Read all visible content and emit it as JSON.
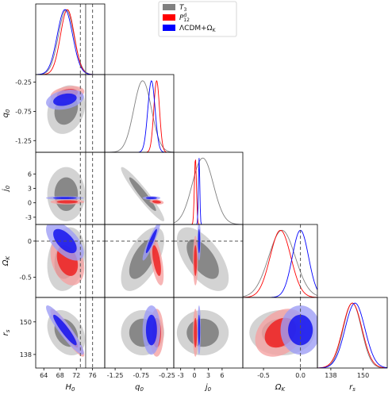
{
  "chart_data": {
    "type": "corner",
    "parameters": [
      {
        "key": "H0",
        "label": "H",
        "sub": "0",
        "ticks": [
          64,
          68,
          72,
          76
        ],
        "lim": [
          62,
          79
        ]
      },
      {
        "key": "q0",
        "label": "q",
        "sub": "0",
        "ticks": [
          -1.25,
          -0.75,
          -0.25
        ],
        "lim": [
          -1.45,
          -0.12
        ]
      },
      {
        "key": "j0",
        "label": "j",
        "sub": "0",
        "ticks": [
          -3,
          0,
          3,
          6
        ],
        "lim": [
          -4.5,
          10.5
        ]
      },
      {
        "key": "OmegaK",
        "label": "Ω",
        "sub": "K",
        "ticks": [
          -0.5,
          0.0
        ],
        "lim": [
          -0.78,
          0.23
        ]
      },
      {
        "key": "rs",
        "label": "r",
        "sub": "s",
        "ticks": [
          138,
          150
        ],
        "lim": [
          133,
          159
        ]
      }
    ],
    "series": [
      {
        "name": "T_3",
        "color": "#808080",
        "fill_outer": "#c8c8c8",
        "fill_inner": "#7a7a7a",
        "means": [
          69.5,
          -0.72,
          1.8,
          -0.25,
          146
        ],
        "sigmas": [
          1.9,
          0.17,
          2.3,
          0.18,
          3.4
        ],
        "correlations": {
          "H0-q0": 0.2,
          "H0-j0": 0.0,
          "H0-OmegaK": 0.2,
          "H0-rs": -0.3,
          "q0-j0": -0.95,
          "q0-OmegaK": 0.6,
          "q0-rs": 0.0,
          "j0-OmegaK": -0.6,
          "j0-rs": 0.0,
          "OmegaK-rs": 0.0
        }
      },
      {
        "name": "P_12^d",
        "color": "#ff0000",
        "fill_outer": "#f5a3a3",
        "fill_inner": "#ee2222",
        "means": [
          69.8,
          -0.45,
          0.2,
          -0.27,
          146
        ],
        "sigmas": [
          1.7,
          0.055,
          0.22,
          0.14,
          3.6
        ],
        "correlations": {
          "H0-q0": 0.3,
          "H0-j0": 0.0,
          "H0-OmegaK": -0.3,
          "H0-rs": -0.92,
          "q0-j0": -0.3,
          "q0-OmegaK": -0.6,
          "q0-rs": 0.0,
          "j0-OmegaK": 0.0,
          "j0-rs": 0.0,
          "OmegaK-rs": 0.3
        }
      },
      {
        "name": "ΛCDM+Ω_K",
        "color": "#0000ff",
        "fill_outer": "#9e9ef5",
        "fill_inner": "#1414ee",
        "means": [
          69.2,
          -0.55,
          1.0,
          0.0,
          147
        ],
        "sigmas": [
          1.9,
          0.07,
          0.15,
          0.11,
          3.7
        ],
        "correlations": {
          "H0-q0": 0.3,
          "H0-j0": 0.0,
          "H0-OmegaK": -0.6,
          "H0-rs": -0.92,
          "q0-j0": 0.0,
          "q0-OmegaK": 0.92,
          "q0-rs": 0.0,
          "j0-OmegaK": 0.0,
          "j0-rs": 0.0,
          "OmegaK-rs": 0.0
        }
      }
    ],
    "reference_lines": {
      "H0": [
        73.0,
        74.3,
        76.0
      ],
      "H0_dashed": [
        73.0,
        76.0
      ],
      "OmegaK_dashed": [
        0.0
      ]
    },
    "legend": {
      "placement": "top-center",
      "entries": [
        {
          "main": "T",
          "sub": "3",
          "sup": "",
          "color": "#808080"
        },
        {
          "main": "P",
          "sub": "12",
          "sup": "d",
          "color": "#ff0000"
        },
        {
          "main": "ΛCDM+Ω",
          "sub": "K",
          "sup": "",
          "color": "#0000ff"
        }
      ]
    },
    "contour_levels": [
      "68%",
      "95%"
    ]
  }
}
